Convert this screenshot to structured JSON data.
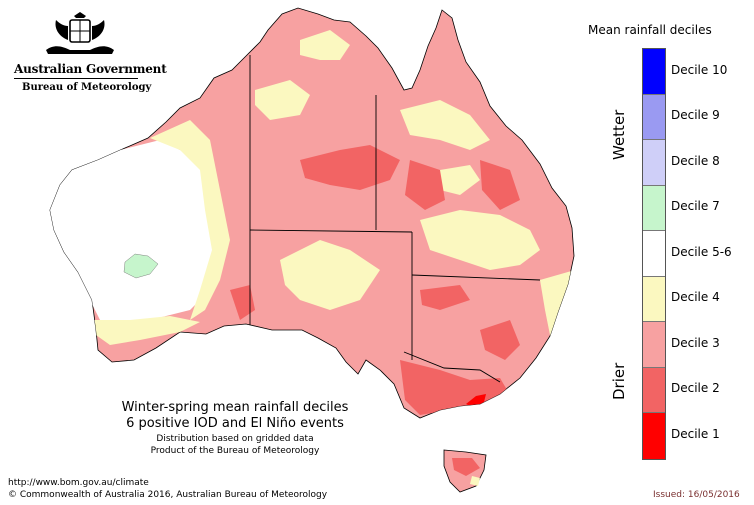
{
  "header": {
    "government": "Australian Government",
    "bureau": "Bureau of Meteorology"
  },
  "legend": {
    "title": "Mean rainfall deciles",
    "wetter_label": "Wetter",
    "drier_label": "Drier",
    "items": [
      {
        "label": "Decile 10",
        "color": "#0000ff"
      },
      {
        "label": "Decile 9",
        "color": "#9a9af2"
      },
      {
        "label": "Decile 8",
        "color": "#cfcff8"
      },
      {
        "label": "Decile 7",
        "color": "#c6f5cc"
      },
      {
        "label": "Decile 5-6",
        "color": "#ffffff"
      },
      {
        "label": "Decile 4",
        "color": "#fbf8c0"
      },
      {
        "label": "Decile 3",
        "color": "#f7a1a1"
      },
      {
        "label": "Decile 2",
        "color": "#f26464"
      },
      {
        "label": "Decile 1",
        "color": "#ff0000"
      }
    ]
  },
  "caption": {
    "line1": "Winter-spring mean rainfall deciles",
    "line2": "6 positive IOD and El Niño events",
    "line3": "Distribution based on gridded data",
    "line4": "Product of the Bureau of Meteorology"
  },
  "footer": {
    "url": "http://www.bom.gov.au/climate",
    "copyright": "© Commonwealth of Australia 2016, Australian Bureau of Meteorology",
    "issued": "Issued: 16/05/2016"
  }
}
